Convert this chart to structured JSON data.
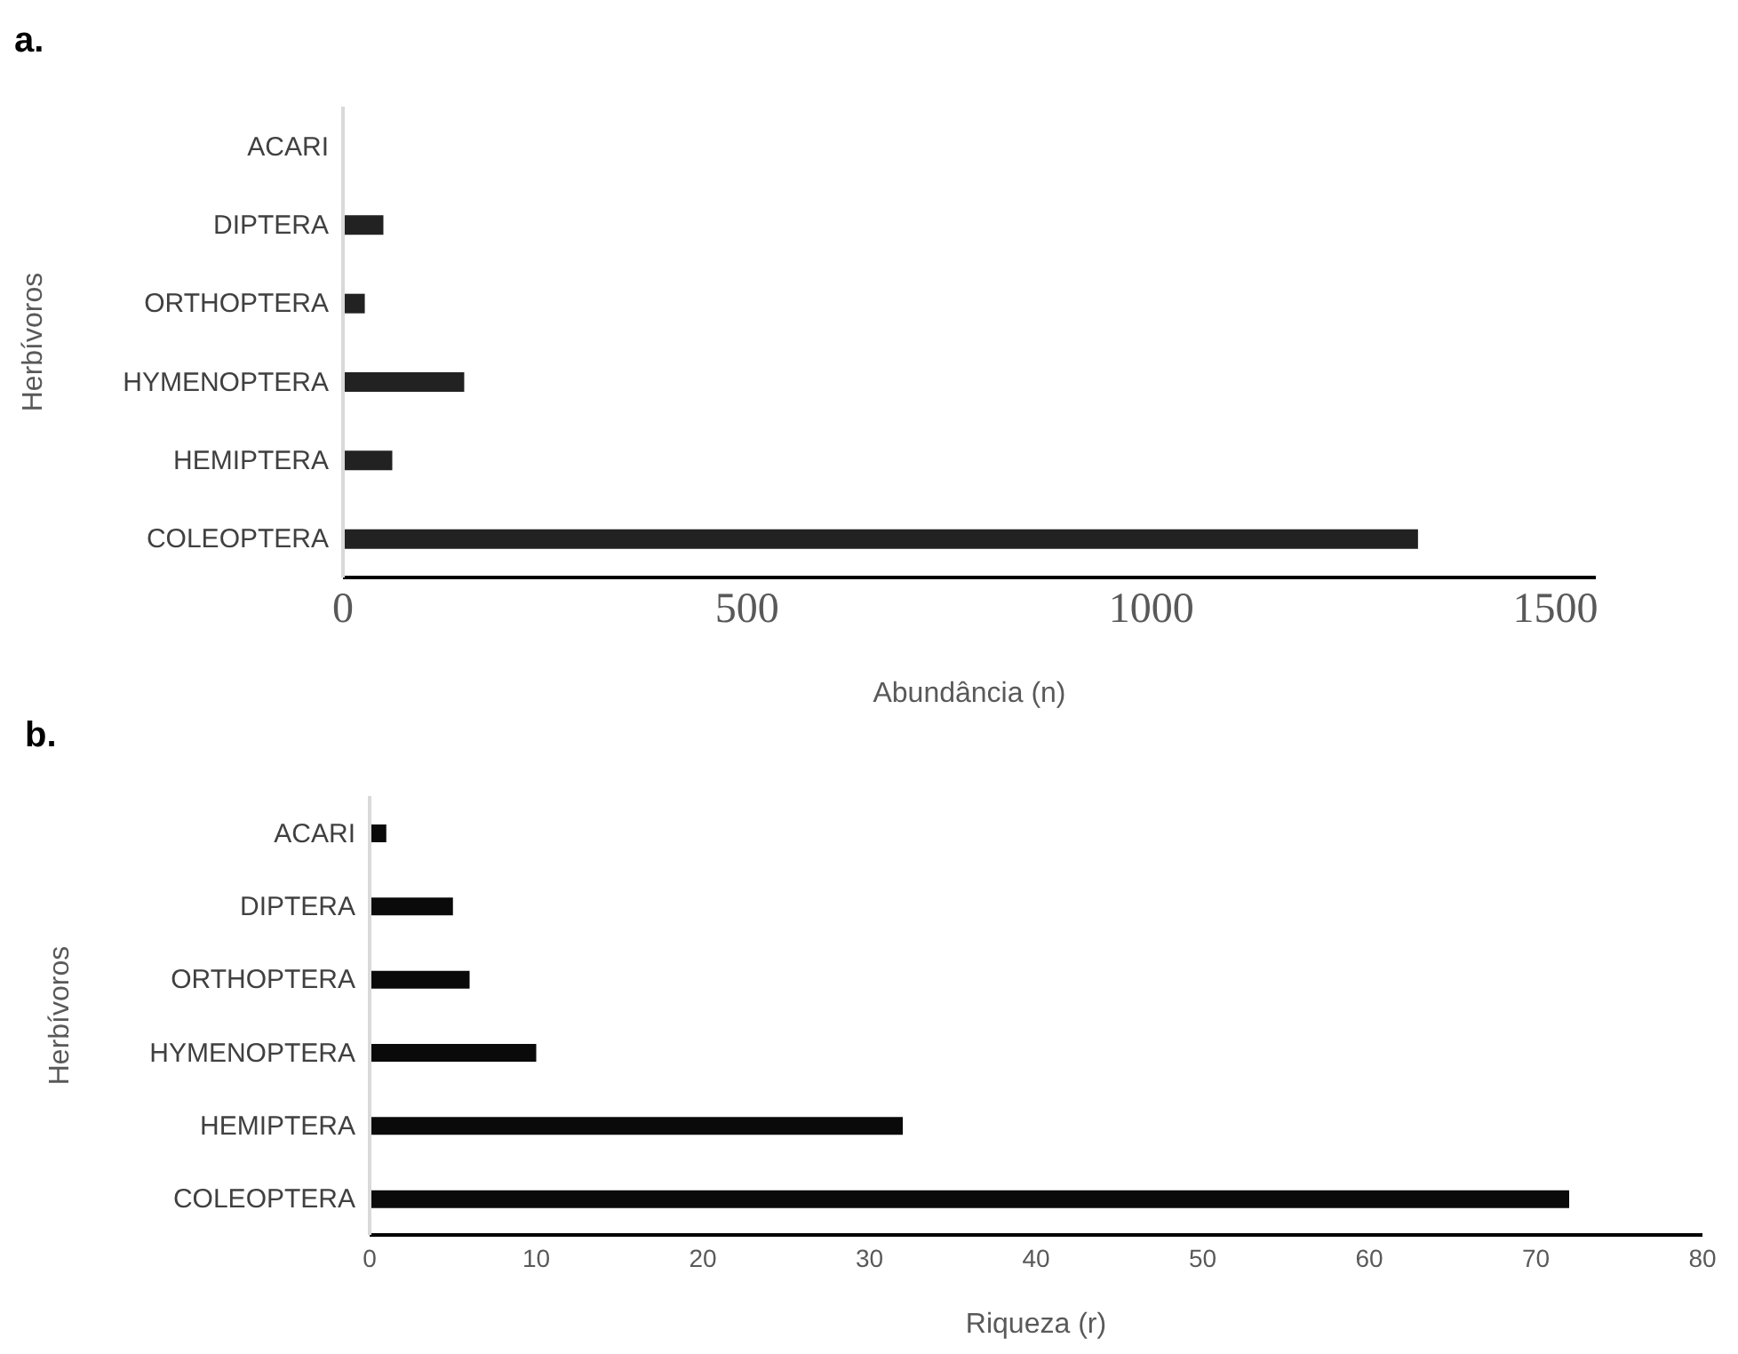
{
  "chart_data": [
    {
      "type": "bar",
      "title": "a.",
      "orientation": "horizontal",
      "categories": [
        "ACARI",
        "DIPTERA",
        "ORTHOPTERA",
        "HYMENOPTERA",
        "HEMIPTERA",
        "COLEOPTERA"
      ],
      "values": [
        null,
        50,
        27,
        150,
        61,
        1330
      ],
      "color": "#222222",
      "xlim": [
        0,
        1550
      ],
      "xticks": [
        0,
        500,
        1000,
        1500
      ],
      "xlabel": "Abundância (n)",
      "ylabel": "Herbívoros",
      "grid": false,
      "legend": false
    },
    {
      "type": "bar",
      "title": "b.",
      "orientation": "horizontal",
      "categories": [
        "ACARI",
        "DIPTERA",
        "ORTHOPTERA",
        "HYMENOPTERA",
        "HEMIPTERA",
        "COLEOPTERA"
      ],
      "values": [
        1,
        5,
        6,
        10,
        32,
        72
      ],
      "color": "#0a0a0a",
      "xlim": [
        0,
        80
      ],
      "xticks": [
        0,
        10,
        20,
        30,
        40,
        50,
        60,
        70,
        80
      ],
      "xlabel": "Riqueza (r)",
      "ylabel": "Herbívoros",
      "grid": false,
      "legend": false
    }
  ]
}
